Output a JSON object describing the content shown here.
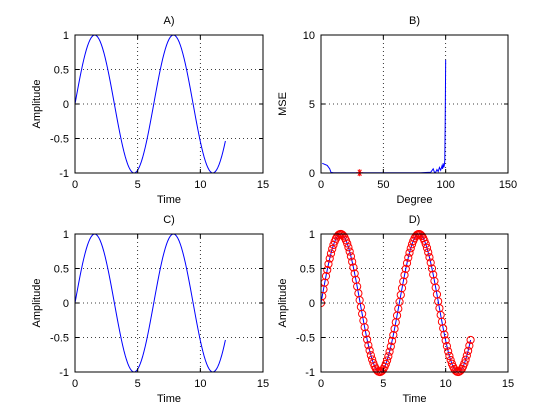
{
  "colors": {
    "background": "#ffffff",
    "axes": "#000000",
    "series_blue": "#0000ff",
    "marker_red": "#ff0000",
    "grid": "#000000"
  },
  "chart_data": [
    {
      "id": "A",
      "type": "line",
      "title": "A)",
      "xlabel": "Time",
      "ylabel": "Amplitude",
      "xlim": [
        0,
        15
      ],
      "ylim": [
        -1,
        1
      ],
      "xticks": [
        0,
        5,
        10,
        15
      ],
      "yticks": [
        -1,
        -0.5,
        0,
        0.5,
        1
      ],
      "xtick_labels": [
        "0",
        "5",
        "10",
        "15"
      ],
      "ytick_labels": [
        "-1",
        "-0.5",
        "0",
        "0.5",
        "1"
      ],
      "grid": "dotted",
      "series": [
        {
          "function": "sin",
          "x_range": [
            0,
            12
          ],
          "step": 0.1,
          "color": "#0000ff",
          "style": "line"
        }
      ]
    },
    {
      "id": "B",
      "type": "line",
      "title": "B)",
      "xlabel": "Degree",
      "ylabel": "MSE",
      "xlim": [
        0,
        150
      ],
      "ylim": [
        0,
        10
      ],
      "xticks": [
        0,
        50,
        100,
        150
      ],
      "yticks": [
        0,
        5,
        10
      ],
      "xtick_labels": [
        "0",
        "50",
        "100",
        "150"
      ],
      "ytick_labels": [
        "0",
        "5",
        "10"
      ],
      "grid": "dotted",
      "series": [
        {
          "color": "#0000ff",
          "style": "line",
          "x": [
            1,
            5,
            7,
            8,
            10,
            20,
            30,
            40,
            50,
            60,
            70,
            80,
            88,
            90,
            91,
            92,
            93,
            94,
            95,
            96,
            97,
            97.5,
            98,
            98.5,
            99,
            99.3,
            99.6,
            100
          ],
          "y": [
            0.7,
            0.55,
            0.3,
            0.05,
            0.02,
            0.02,
            0.02,
            0.02,
            0.02,
            0.02,
            0.02,
            0.02,
            0.05,
            0.3,
            0.05,
            0.05,
            0.25,
            0.1,
            0.4,
            0.2,
            0.5,
            0.3,
            0.7,
            0.4,
            0.6,
            0.9,
            3.5,
            8.2
          ]
        },
        {
          "color": "#ff0000",
          "style": "marker",
          "marker": "*",
          "x": [
            31
          ],
          "y": [
            0.02
          ]
        }
      ]
    },
    {
      "id": "C",
      "type": "line",
      "title": "C)",
      "xlabel": "Time",
      "ylabel": "Amplitude",
      "xlim": [
        0,
        15
      ],
      "ylim": [
        -1,
        1
      ],
      "xticks": [
        0,
        5,
        10,
        15
      ],
      "yticks": [
        -1,
        -0.5,
        0,
        0.5,
        1
      ],
      "xtick_labels": [
        "0",
        "5",
        "10",
        "15"
      ],
      "ytick_labels": [
        "-1",
        "-0.5",
        "0",
        "0.5",
        "1"
      ],
      "grid": "dotted",
      "series": [
        {
          "function": "sin",
          "x_range": [
            0,
            12
          ],
          "step": 0.1,
          "color": "#0000ff",
          "style": "line"
        }
      ]
    },
    {
      "id": "D",
      "type": "scatter",
      "title": "D)",
      "xlabel": "Time",
      "ylabel": "Amplitude",
      "xlim": [
        0,
        15
      ],
      "ylim": [
        -1,
        1
      ],
      "xticks": [
        0,
        5,
        10,
        15
      ],
      "yticks": [
        -1,
        -0.5,
        0,
        0.5,
        1
      ],
      "xtick_labels": [
        "0",
        "5",
        "10",
        "15"
      ],
      "ytick_labels": [
        "-1",
        "-0.5",
        "0",
        "0.5",
        "1"
      ],
      "grid": "dotted",
      "series": [
        {
          "function": "sin",
          "x_range": [
            0,
            12
          ],
          "step": 0.1,
          "color": "#0000ff",
          "style": "line"
        },
        {
          "function": "sin",
          "x_range": [
            0,
            12
          ],
          "step": 0.1,
          "color": "#ff0000",
          "style": "marker",
          "marker": "o"
        }
      ]
    }
  ]
}
